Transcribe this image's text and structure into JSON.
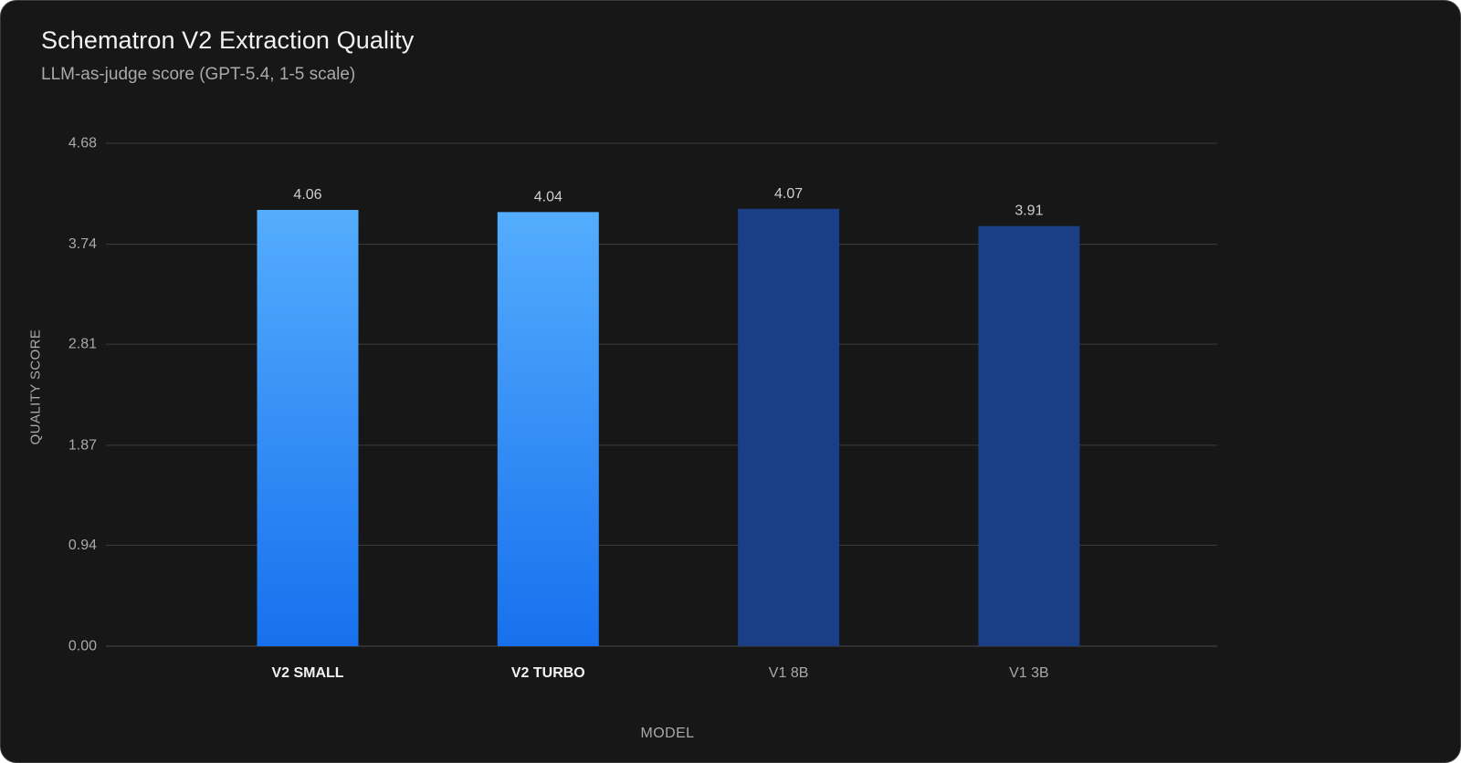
{
  "chart_data": {
    "type": "bar",
    "title": "Schematron V2 Extraction Quality",
    "subtitle": "LLM-as-judge score (GPT-5.4, 1-5 scale)",
    "xlabel": "MODEL",
    "ylabel": "QUALITY SCORE",
    "categories": [
      "V2 SMALL",
      "V2 TURBO",
      "V1 8B",
      "V1 3B"
    ],
    "values": [
      4.06,
      4.04,
      4.07,
      3.91
    ],
    "value_labels": [
      "4.06",
      "4.04",
      "4.07",
      "3.91"
    ],
    "yticks": [
      0.0,
      0.94,
      1.87,
      2.81,
      3.74,
      4.68
    ],
    "ytick_labels": [
      "0.00",
      "0.94",
      "1.87",
      "2.81",
      "3.74",
      "4.68"
    ],
    "ylim": [
      0,
      4.68
    ],
    "grid": true,
    "legend": "none",
    "bar_colors": [
      "gradient-light-blue",
      "gradient-light-blue",
      "#1a3f86",
      "#1a3f86"
    ],
    "colors": {
      "v2_top": "#54adfd",
      "v2_bottom": "#1870ee",
      "v1": "#1a3f86",
      "background": "#171717",
      "grid": "#3d3d3d"
    }
  }
}
